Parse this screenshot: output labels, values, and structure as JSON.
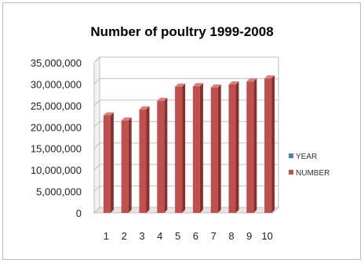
{
  "chart_data": {
    "type": "bar",
    "title": "Number of poultry 1999-2008",
    "categories": [
      "1",
      "2",
      "3",
      "4",
      "5",
      "6",
      "7",
      "8",
      "9",
      "10"
    ],
    "series": [
      {
        "name": "YEAR",
        "values": [
          1999,
          2000,
          2001,
          2002,
          2003,
          2004,
          2005,
          2006,
          2007,
          2008
        ],
        "color": "#4f81bd"
      },
      {
        "name": "NUMBER",
        "values": [
          22700000,
          21500000,
          24100000,
          26100000,
          29400000,
          29500000,
          29200000,
          29900000,
          30600000,
          31300000
        ],
        "color": "#c0504d"
      }
    ],
    "y_ticks": [
      "0",
      "5,000,000",
      "10,000,000",
      "15,000,000",
      "20,000,000",
      "25,000,000",
      "30,000,000",
      "35,000,000"
    ],
    "ylim": [
      0,
      35000000
    ],
    "grid": true,
    "legend": "right",
    "style": "3d"
  }
}
